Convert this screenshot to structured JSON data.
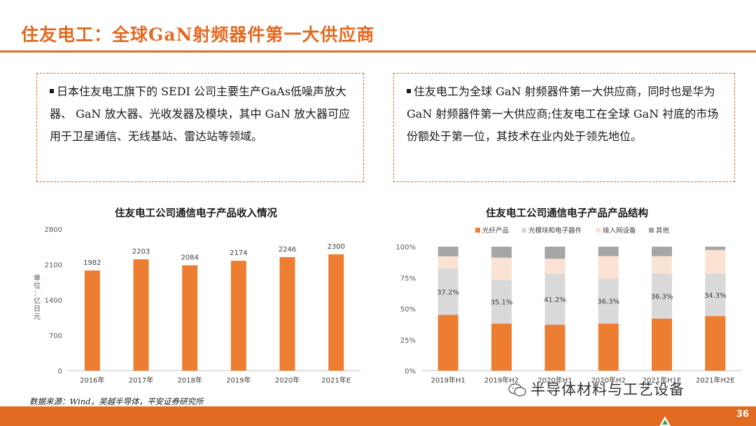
{
  "title": "住友电工：全球GaN射频器件第一大供应商",
  "box_left": "日本住友电工旗下的 SEDI 公司主要生产GaAs低噪声放大器、 GaN 放大器、光收发器及模块，其中 GaN 放大器可应用于卫星通信、无线基站、雷达站等领域。",
  "box_right": "住友电工为全球 GaN 射频器件第一大供应商，同时也是华为GaN 射频器件第一大供应商;住友电工在全球 GaN 衬底的市场份额处于第一位，其技术在业内处于领先地位。",
  "source": "数据来源：Wind，吴越半导体，平安证券研究所",
  "watermark": "半导体材料与工艺设备",
  "page_number": "36",
  "colors": {
    "accent": "#e26a21",
    "orange": "#ed7d31",
    "light_grey": "#d9d9d9",
    "peach": "#fbe3d3",
    "dark_grey": "#a6a6a6"
  },
  "chart_data": [
    {
      "type": "bar",
      "title": "住友电工公司通信电子产品收入情况",
      "ylabel": "单位：亿日元",
      "categories": [
        "2016年",
        "2017年",
        "2018年",
        "2019年",
        "2020年",
        "2021年E"
      ],
      "values": [
        1982,
        2203,
        2084,
        2174,
        2246,
        2300
      ],
      "ylim": [
        0,
        2800
      ],
      "yticks": [
        0,
        700,
        1400,
        2100,
        2800
      ],
      "grid": false
    },
    {
      "type": "bar",
      "stacked": true,
      "title": "住友电工公司通信电子产品产品结构",
      "legend_position": "top",
      "categories": [
        "2019年H1",
        "2019年H2",
        "2020年H1",
        "2020年H2",
        "2021年H1E",
        "2021年H2E"
      ],
      "yticks": [
        "0%",
        "25%",
        "50%",
        "75%",
        "100%"
      ],
      "ylim": [
        0,
        100
      ],
      "series": [
        {
          "name": "光纤产品",
          "color": "#ed7d31",
          "values": [
            45,
            38,
            37,
            38,
            42,
            44
          ]
        },
        {
          "name": "光模块和电子器件",
          "color": "#d9d9d9",
          "values": [
            37.2,
            35.1,
            41.2,
            36.3,
            36.3,
            34.3
          ],
          "labels": [
            "37.2%",
            "35.1%",
            "41.2%",
            "36.3%",
            "36.3%",
            "34.3%"
          ]
        },
        {
          "name": "接入网设备",
          "color": "#fbe3d3",
          "values": [
            10,
            18,
            12,
            18,
            14,
            19
          ]
        },
        {
          "name": "其他",
          "color": "#a6a6a6",
          "values": [
            7.8,
            8.9,
            9.8,
            7.7,
            7.7,
            2.7
          ]
        }
      ],
      "grid": false
    }
  ]
}
